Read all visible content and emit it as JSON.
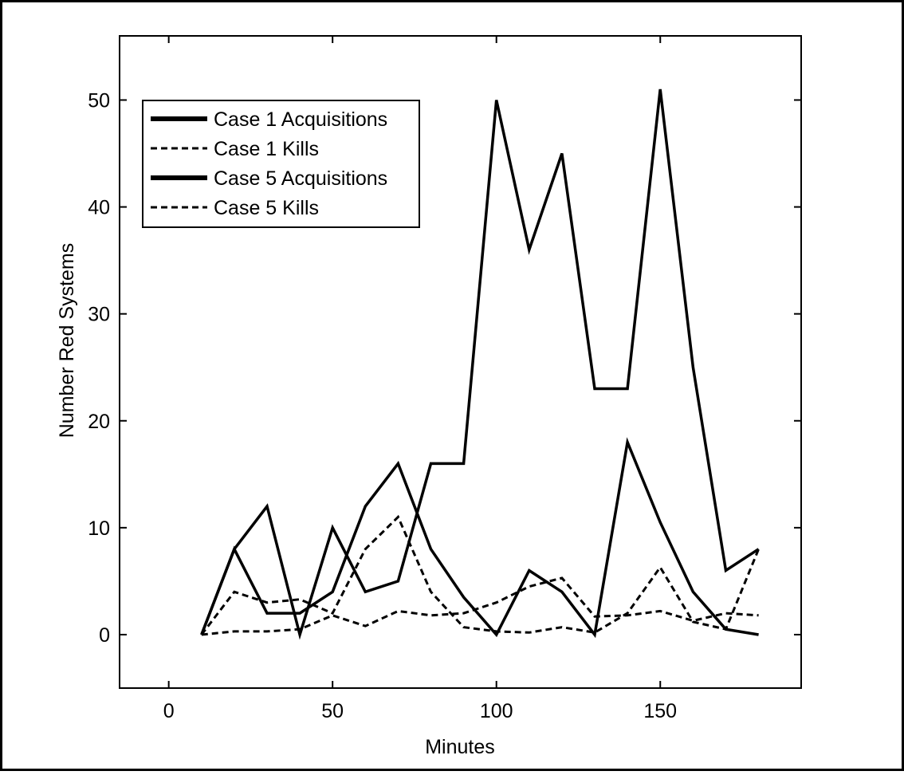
{
  "chart_data": {
    "type": "line",
    "title": "",
    "xlabel": "Minutes",
    "ylabel": "Number Red Systems",
    "xlim": [
      -15,
      193
    ],
    "ylim": [
      -5,
      56
    ],
    "xticks": [
      0,
      50,
      100,
      150
    ],
    "yticks": [
      0,
      10,
      20,
      30,
      40,
      50
    ],
    "grid": false,
    "legend_position": "top-left",
    "series": [
      {
        "name": "Case 1 Acquisitions",
        "style": "solid",
        "color": "#000000",
        "x": [
          10,
          20,
          30,
          40,
          50,
          60,
          70,
          80,
          90,
          100,
          110,
          120,
          130,
          140,
          150,
          160,
          170,
          180
        ],
        "values": [
          0,
          8,
          2,
          2,
          4,
          12,
          16,
          8,
          3.5,
          0,
          6,
          4,
          0,
          18,
          10.5,
          4,
          0.5,
          0
        ]
      },
      {
        "name": "Case 1 Kills",
        "style": "dashed",
        "color": "#000000",
        "x": [
          10,
          20,
          30,
          40,
          50,
          60,
          70,
          80,
          90,
          100,
          110,
          120,
          130,
          140,
          150,
          160,
          170,
          180
        ],
        "values": [
          0,
          4,
          3,
          3.3,
          2,
          8,
          11,
          4,
          0.7,
          0.3,
          0.2,
          0.7,
          0.2,
          2,
          6.3,
          1.2,
          0.5,
          8
        ]
      },
      {
        "name": "Case 5 Acquisitions",
        "style": "solid",
        "color": "#000000",
        "x": [
          10,
          20,
          30,
          40,
          50,
          60,
          70,
          80,
          90,
          100,
          110,
          120,
          130,
          140,
          150,
          160,
          170,
          180
        ],
        "values": [
          0,
          8,
          12,
          0,
          10,
          4,
          5,
          16,
          16,
          50,
          36,
          45,
          23,
          23,
          51,
          25,
          6,
          8
        ]
      },
      {
        "name": "Case 5 Kills",
        "style": "dashed",
        "color": "#000000",
        "x": [
          10,
          20,
          30,
          40,
          50,
          60,
          70,
          80,
          90,
          100,
          110,
          120,
          130,
          140,
          150,
          160,
          170,
          180
        ],
        "values": [
          0,
          0.3,
          0.3,
          0.5,
          1.8,
          0.8,
          2.2,
          1.8,
          2,
          3,
          4.5,
          5.3,
          1.7,
          1.8,
          2.2,
          1.3,
          2,
          1.8
        ]
      }
    ]
  }
}
